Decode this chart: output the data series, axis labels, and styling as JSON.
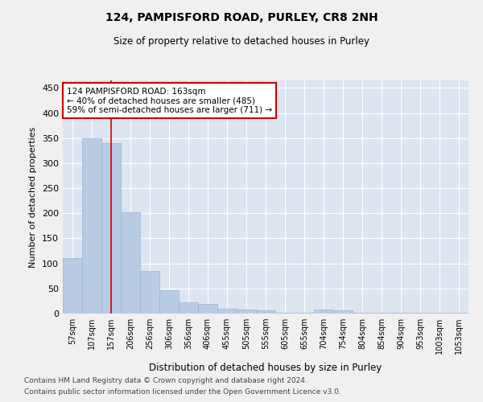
{
  "title1": "124, PAMPISFORD ROAD, PURLEY, CR8 2NH",
  "title2": "Size of property relative to detached houses in Purley",
  "xlabel": "Distribution of detached houses by size in Purley",
  "ylabel": "Number of detached properties",
  "footer1": "Contains HM Land Registry data © Crown copyright and database right 2024.",
  "footer2": "Contains public sector information licensed under the Open Government Licence v3.0.",
  "bar_labels": [
    "57sqm",
    "107sqm",
    "157sqm",
    "206sqm",
    "256sqm",
    "306sqm",
    "356sqm",
    "406sqm",
    "455sqm",
    "505sqm",
    "555sqm",
    "605sqm",
    "655sqm",
    "704sqm",
    "754sqm",
    "804sqm",
    "854sqm",
    "904sqm",
    "953sqm",
    "1003sqm",
    "1053sqm"
  ],
  "bar_values": [
    110,
    350,
    340,
    202,
    85,
    47,
    23,
    20,
    10,
    8,
    6,
    1,
    1,
    8,
    7,
    1,
    1,
    1,
    2,
    2,
    1
  ],
  "bar_color": "#b8cce4",
  "bar_edgecolor": "#9ab5d5",
  "bg_color": "#dde5f0",
  "grid_color": "#ffffff",
  "fig_color": "#f0f0f0",
  "vline_x": 2,
  "vline_color": "#cc0000",
  "annotation_text": "124 PAMPISFORD ROAD: 163sqm\n← 40% of detached houses are smaller (485)\n59% of semi-detached houses are larger (711) →",
  "annotation_box_color": "#ffffff",
  "annotation_box_edgecolor": "#cc0000",
  "ylim": [
    0,
    465
  ],
  "yticks": [
    0,
    50,
    100,
    150,
    200,
    250,
    300,
    350,
    400,
    450
  ]
}
